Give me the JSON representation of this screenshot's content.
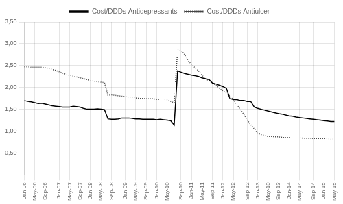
{
  "chart_data": {
    "type": "line",
    "categories": [
      "Jan-06",
      null,
      null,
      "May-06",
      null,
      null,
      "Sep-06",
      null,
      null,
      null,
      "Jan-07",
      null,
      null,
      "May-07",
      null,
      null,
      "Sep-07",
      null,
      null,
      "Jan-08",
      null,
      null,
      "May-08",
      null,
      null,
      "Sep-08",
      null,
      null,
      null,
      "Jan-09",
      null,
      null,
      "May-09",
      null,
      null,
      "Sep-09",
      null,
      null,
      "Jan-10",
      null,
      null,
      "May-10",
      null,
      null,
      null,
      "Sep-10",
      null,
      null,
      "Jan-11",
      null,
      null,
      "May-11",
      null,
      null,
      "Sep-11",
      null,
      null,
      "Jan-12",
      null,
      null,
      "May-12",
      null,
      null,
      null,
      "Sep-12",
      null,
      null,
      "Jan-13",
      null,
      null,
      "May-13",
      null,
      null,
      "Sep-13",
      null,
      null,
      "Jan-14",
      null,
      null,
      "May-14",
      null,
      null,
      null,
      "Sep-14",
      null,
      null,
      "Jan-15",
      null,
      null,
      "May-15"
    ],
    "series": [
      {
        "name": "Cost/DDDs Antidepressants",
        "color": "#000000",
        "line_style": "solid",
        "values": [
          1.7,
          1.68,
          1.67,
          1.65,
          1.63,
          1.64,
          1.62,
          1.6,
          1.58,
          1.57,
          1.56,
          1.55,
          1.55,
          1.55,
          1.57,
          1.56,
          1.55,
          1.52,
          1.5,
          1.5,
          1.5,
          1.51,
          1.5,
          1.49,
          1.28,
          1.27,
          1.27,
          1.28,
          1.3,
          1.3,
          1.3,
          1.29,
          1.28,
          1.28,
          1.27,
          1.27,
          1.27,
          1.27,
          1.26,
          1.27,
          1.26,
          1.25,
          1.24,
          1.14,
          2.38,
          2.35,
          2.32,
          2.3,
          2.28,
          2.27,
          2.25,
          2.22,
          2.2,
          2.18,
          2.1,
          2.08,
          2.05,
          2.02,
          1.98,
          1.75,
          1.72,
          1.72,
          1.7,
          1.7,
          1.68,
          1.68,
          1.55,
          1.52,
          1.5,
          1.48,
          1.46,
          1.44,
          1.42,
          1.4,
          1.39,
          1.37,
          1.35,
          1.34,
          1.32,
          1.31,
          1.3,
          1.29,
          1.28,
          1.27,
          1.26,
          1.25,
          1.24,
          1.23,
          1.22,
          1.22
        ]
      },
      {
        "name": "Cost/DDDs Antiulcer",
        "color": "#444444",
        "line_style": "dotted",
        "values": [
          2.47,
          2.47,
          2.46,
          2.46,
          2.46,
          2.46,
          2.45,
          2.43,
          2.41,
          2.39,
          2.36,
          2.33,
          2.3,
          2.28,
          2.26,
          2.24,
          2.22,
          2.2,
          2.18,
          2.16,
          2.14,
          2.13,
          2.12,
          2.11,
          1.82,
          1.83,
          1.82,
          1.81,
          1.8,
          1.79,
          1.78,
          1.77,
          1.76,
          1.75,
          1.75,
          1.74,
          1.74,
          1.74,
          1.73,
          1.73,
          1.73,
          1.72,
          1.68,
          1.65,
          2.87,
          2.85,
          2.75,
          2.62,
          2.52,
          2.45,
          2.38,
          2.28,
          2.2,
          2.15,
          2.1,
          2.05,
          1.98,
          1.92,
          1.87,
          1.8,
          1.73,
          1.6,
          1.5,
          1.38,
          1.25,
          1.15,
          1.05,
          0.95,
          0.92,
          0.9,
          0.88,
          0.88,
          0.87,
          0.87,
          0.86,
          0.85,
          0.85,
          0.85,
          0.85,
          0.85,
          0.84,
          0.84,
          0.84,
          0.83,
          0.83,
          0.83,
          0.83,
          0.83,
          0.82,
          0.82
        ]
      }
    ],
    "ylim": [
      0,
      3.5
    ],
    "yticks": [
      {
        "value": 0,
        "label": "-"
      },
      {
        "value": 0.5,
        "label": "0,50"
      },
      {
        "value": 1.0,
        "label": "1,00"
      },
      {
        "value": 1.5,
        "label": "1,50"
      },
      {
        "value": 2.0,
        "label": "2,00"
      },
      {
        "value": 2.5,
        "label": "2,50"
      },
      {
        "value": 3.0,
        "label": "3,00"
      },
      {
        "value": 3.5,
        "label": "3,50"
      }
    ],
    "grid": true,
    "legend": "top"
  }
}
